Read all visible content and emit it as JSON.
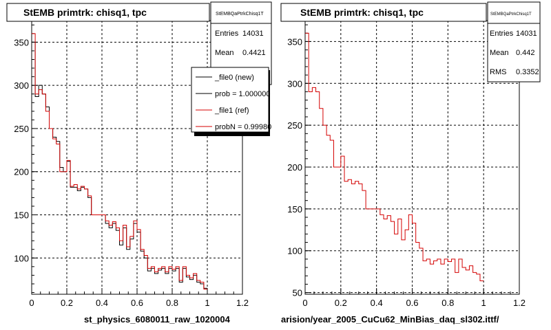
{
  "panels": [
    {
      "title": "StEMB primtrk: chisq1, tpc",
      "stats": {
        "name": "StEMBQaPtrkChisq1T",
        "rows": [
          {
            "label": "Entries",
            "value": "14031"
          },
          {
            "label": "Mean",
            "value": "0.4421"
          }
        ]
      },
      "legend": [
        {
          "label": "_file0 (new)",
          "color": "#000000"
        },
        {
          "label": "prob = 1.000000",
          "color": "#000000"
        },
        {
          "label": "_file1 (ref)",
          "color": "#d40000"
        },
        {
          "label": "probN = 0.99980",
          "color": "#d40000"
        }
      ],
      "xlabel": "st_physics_6080011_raw_1020004"
    },
    {
      "title": "StEMB primtrk: chisq1, tpc",
      "stats": {
        "name": "StEMBQaPtrkChisq1T",
        "rows": [
          {
            "label": "Entries",
            "value": "14031"
          },
          {
            "label": "Mean",
            "value": "0.442"
          },
          {
            "label": "RMS",
            "value": "0.3352"
          }
        ]
      },
      "legend": [],
      "xlabel": "arision/year_2005_CuCu62_MinBias_daq_sl302.ittf/"
    }
  ],
  "chart_data": [
    {
      "type": "histogram",
      "xlim": [
        0,
        1.2
      ],
      "ylim": [
        58,
        375
      ],
      "xticks": [
        0,
        0.2,
        0.4,
        0.6,
        0.8,
        1,
        1.2
      ],
      "xtick_labels": [
        "0",
        "0.2",
        "0.4",
        "0.6",
        "0.8",
        "1",
        "1.2"
      ],
      "yticks": [
        100,
        150,
        200,
        250,
        300,
        350
      ],
      "ytick_labels": [
        "100",
        "150",
        "200",
        "250",
        "300",
        "350"
      ],
      "grid": true,
      "bin_width": 0.02,
      "series": [
        {
          "color": "#000000",
          "values": [
            350,
            287,
            300,
            290,
            275,
            250,
            240,
            235,
            205,
            200,
            212,
            182,
            182,
            178,
            182,
            180,
            170,
            150,
            150,
            150,
            150,
            140,
            135,
            140,
            132,
            115,
            135,
            110,
            122,
            140,
            130,
            108,
            100,
            85,
            88,
            82,
            86,
            88,
            82,
            88,
            85,
            88,
            72,
            88,
            78,
            75,
            80,
            72,
            70,
            65
          ]
        },
        {
          "color": "#d40000",
          "values": [
            360,
            290,
            295,
            290,
            270,
            250,
            238,
            232,
            200,
            200,
            213,
            183,
            185,
            180,
            183,
            180,
            172,
            150,
            150,
            150,
            150,
            143,
            138,
            142,
            135,
            120,
            138,
            113,
            125,
            143,
            133,
            110,
            103,
            88,
            90,
            84,
            88,
            90,
            84,
            90,
            87,
            90,
            74,
            90,
            80,
            77,
            82,
            74,
            72,
            64
          ]
        }
      ]
    },
    {
      "type": "histogram",
      "xlim": [
        0,
        1.2
      ],
      "ylim": [
        48,
        375
      ],
      "xticks": [
        0,
        0.2,
        0.4,
        0.6,
        0.8,
        1,
        1.2
      ],
      "xtick_labels": [
        "0",
        "0.2",
        "0.4",
        "0.6",
        "0.8",
        "1",
        "1.2"
      ],
      "yticks": [
        50,
        100,
        150,
        200,
        250,
        300,
        350
      ],
      "ytick_labels": [
        "50",
        "100",
        "150",
        "200",
        "250",
        "300",
        "350"
      ],
      "grid": true,
      "bin_width": 0.02,
      "series": [
        {
          "color": "#d40000",
          "values": [
            360,
            290,
            295,
            290,
            270,
            250,
            238,
            232,
            200,
            200,
            213,
            183,
            185,
            180,
            183,
            180,
            172,
            150,
            150,
            150,
            150,
            143,
            138,
            142,
            135,
            120,
            138,
            113,
            125,
            143,
            133,
            110,
            103,
            88,
            90,
            84,
            88,
            90,
            84,
            90,
            87,
            90,
            74,
            90,
            80,
            77,
            82,
            74,
            72,
            64
          ]
        }
      ]
    }
  ]
}
